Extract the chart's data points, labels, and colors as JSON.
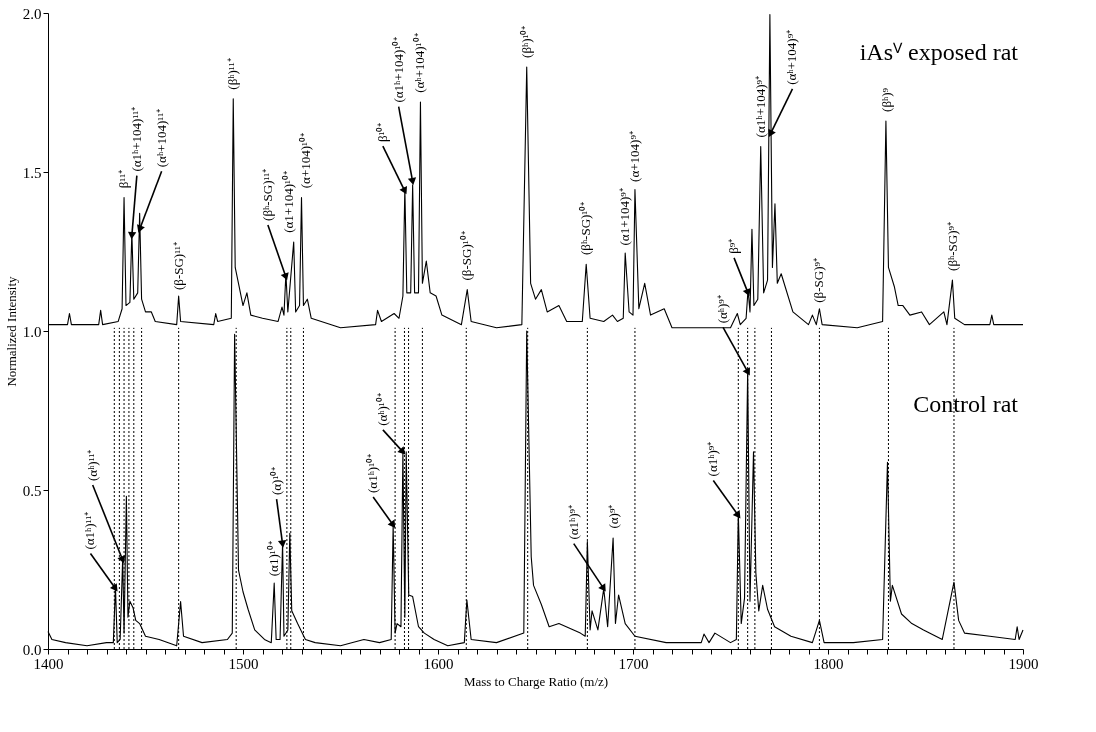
{
  "chart_data": {
    "type": "line",
    "xlabel": "Mass to Charge Ratio (m/z)",
    "ylabel": "Normalized Intensity",
    "xlim": [
      1400,
      1900
    ],
    "ylim": [
      0,
      2
    ],
    "xticks": [
      1400,
      {
        "value": 1410,
        "label": null
      },
      {
        "value": 1420,
        "label": null
      },
      {
        "value": 1430,
        "label": null
      },
      {
        "value": 1440,
        "label": null
      },
      {
        "value": 1450,
        "label": null
      },
      {
        "value": 1460,
        "label": null
      },
      {
        "value": 1470,
        "label": null
      },
      {
        "value": 1480,
        "label": null
      },
      {
        "value": 1490,
        "label": null
      },
      1500,
      {
        "value": 1510,
        "label": null
      },
      {
        "value": 1520,
        "label": null
      },
      {
        "value": 1530,
        "label": null
      },
      {
        "value": 1540,
        "label": null
      },
      {
        "value": 1550,
        "label": null
      },
      {
        "value": 1560,
        "label": null
      },
      {
        "value": 1570,
        "label": null
      },
      {
        "value": 1580,
        "label": null
      },
      {
        "value": 1590,
        "label": null
      },
      1600,
      {
        "value": 1610,
        "label": null
      },
      {
        "value": 1620,
        "label": null
      },
      {
        "value": 1630,
        "label": null
      },
      {
        "value": 1640,
        "label": null
      },
      {
        "value": 1650,
        "label": null
      },
      {
        "value": 1660,
        "label": null
      },
      {
        "value": 1670,
        "label": null
      },
      {
        "value": 1680,
        "label": null
      },
      {
        "value": 1690,
        "label": null
      },
      1700,
      {
        "value": 1710,
        "label": null
      },
      {
        "value": 1720,
        "label": null
      },
      {
        "value": 1730,
        "label": null
      },
      {
        "value": 1740,
        "label": null
      },
      {
        "value": 1750,
        "label": null
      },
      {
        "value": 1760,
        "label": null
      },
      {
        "value": 1770,
        "label": null
      },
      {
        "value": 1780,
        "label": null
      },
      {
        "value": 1790,
        "label": null
      },
      1800,
      {
        "value": 1810,
        "label": null
      },
      {
        "value": 1820,
        "label": null
      },
      {
        "value": 1830,
        "label": null
      },
      {
        "value": 1840,
        "label": null
      },
      {
        "value": 1850,
        "label": null
      },
      {
        "value": 1860,
        "label": null
      },
      {
        "value": 1870,
        "label": null
      },
      {
        "value": 1880,
        "label": null
      },
      {
        "value": 1890,
        "label": null
      },
      1900
    ],
    "yticks": [
      {
        "value": 0,
        "label": "0.0"
      },
      {
        "value": 0.5,
        "label": "0.5"
      },
      {
        "value": 1,
        "label": "1.0"
      },
      {
        "value": 1.5,
        "label": "1.5"
      },
      {
        "value": 2,
        "label": "2.0"
      }
    ],
    "grid": false,
    "marker": "none",
    "line_style": "solid",
    "series": [
      {
        "name": "iAsⱽ exposed rat",
        "color": "#000000",
        "x": [
          1400,
          1410,
          1411,
          1412,
          1426,
          1427,
          1428,
          1436,
          1438,
          1439,
          1440,
          1442,
          1443,
          1444,
          1446,
          1447,
          1448,
          1450,
          1453,
          1455,
          1466,
          1467,
          1468,
          1485,
          1486,
          1487,
          1494,
          1495,
          1496,
          1498,
          1500,
          1502,
          1504,
          1510,
          1518,
          1520,
          1521,
          1522,
          1523,
          1526,
          1527,
          1529,
          1530,
          1531,
          1533,
          1535,
          1550,
          1568,
          1569,
          1571,
          1577.5,
          1580,
          1582,
          1583,
          1584,
          1586,
          1587,
          1588,
          1590,
          1591,
          1592,
          1594,
          1596,
          1599,
          1602,
          1612,
          1615,
          1617,
          1630,
          1643,
          1645.5,
          1647.5,
          1650,
          1653,
          1656,
          1662,
          1666,
          1674,
          1676,
          1678,
          1685,
          1689.5,
          1692,
          1695,
          1696,
          1698,
          1700,
          1701,
          1703,
          1706,
          1709,
          1716,
          1720,
          1739,
          1750,
          1753.5,
          1755,
          1758,
          1759,
          1760,
          1761,
          1762,
          1764,
          1765.5,
          1767,
          1769,
          1770.2,
          1771.5,
          1772.8,
          1774,
          1776,
          1778,
          1782,
          1790,
          1792,
          1794,
          1795.6,
          1797,
          1815,
          1828,
          1829.7,
          1831,
          1834,
          1836,
          1838.4,
          1842,
          1848,
          1852,
          1859.4,
          1861,
          1863.8,
          1865,
          1870,
          1883,
          1884,
          1885,
          1900
        ],
        "values": [
          1.02,
          1.02,
          1.055,
          1.02,
          1.02,
          1.065,
          1.02,
          1.03,
          1.07,
          1.42,
          1.08,
          1.09,
          1.31,
          1.1,
          1.12,
          1.37,
          1.1,
          1.06,
          1.06,
          1.03,
          1.02,
          1.11,
          1.03,
          1.02,
          1.055,
          1.03,
          1.04,
          1.73,
          1.2,
          1.14,
          1.08,
          1.12,
          1.05,
          1.04,
          1.03,
          1.075,
          1.05,
          1.18,
          1.06,
          1.28,
          1.06,
          1.08,
          1.42,
          1.08,
          1.1,
          1.04,
          1.01,
          1.02,
          1.065,
          1.03,
          1.055,
          1.04,
          1.11,
          1.45,
          1.12,
          1.12,
          1.46,
          1.12,
          1.12,
          1.72,
          1.15,
          1.22,
          1.12,
          1.11,
          1.05,
          1.02,
          1.13,
          1.03,
          1.01,
          1.02,
          1.83,
          1.15,
          1.1,
          1.13,
          1.06,
          1.08,
          1.03,
          1.03,
          1.21,
          1.04,
          1.03,
          1.05,
          1.03,
          1.04,
          1.245,
          1.06,
          1.05,
          1.445,
          1.07,
          1.15,
          1.05,
          1.07,
          1.01,
          1.01,
          1.01,
          1.055,
          1.02,
          1.04,
          1.13,
          1.06,
          1.32,
          1.08,
          1.1,
          1.58,
          1.12,
          1.16,
          1.995,
          1.2,
          1.4,
          1.15,
          1.18,
          1.14,
          1.06,
          1.02,
          1.05,
          1.02,
          1.07,
          1.02,
          1.01,
          1.03,
          1.66,
          1.2,
          1.14,
          1.08,
          1.08,
          1.05,
          1.06,
          1.02,
          1.06,
          1.02,
          1.16,
          1.04,
          1.02,
          1.02,
          1.05,
          1.02,
          1.02
        ]
      },
      {
        "name": "Control rat",
        "color": "#000000",
        "x": [
          1400,
          1402,
          1409,
          1420,
          1430,
          1433.5,
          1434.6,
          1435.5,
          1437,
          1438.3,
          1439,
          1440.2,
          1441,
          1442,
          1443.6,
          1445,
          1447,
          1450,
          1457,
          1466,
          1468,
          1469.5,
          1479,
          1492,
          1494.5,
          1495.7,
          1497.7,
          1500,
          1502.6,
          1506,
          1511,
          1514.5,
          1516,
          1517,
          1519,
          1520.3,
          1521,
          1523,
          1524,
          1525,
          1528,
          1532,
          1537,
          1550,
          1562,
          1570,
          1576,
          1577,
          1578,
          1579,
          1581,
          1582,
          1583,
          1583.7,
          1585,
          1587,
          1590,
          1593,
          1598,
          1605,
          1613.5,
          1614.8,
          1617,
          1630,
          1644,
          1645.5,
          1647.8,
          1649,
          1653,
          1657,
          1662,
          1673,
          1675.5,
          1676.6,
          1678,
          1679,
          1682,
          1685,
          1687,
          1689.8,
          1691,
          1692.6,
          1696,
          1701,
          1717,
          1735,
          1736.4,
          1739,
          1742,
          1750,
          1753,
          1754,
          1755.5,
          1757.2,
          1758.8,
          1760,
          1761.8,
          1763,
          1764.5,
          1766.5,
          1769,
          1772.6,
          1781,
          1792,
          1795.6,
          1798,
          1813,
          1828,
          1830.5,
          1832,
          1833,
          1837.7,
          1843,
          1849,
          1858.6,
          1864.6,
          1867,
          1870,
          1883,
          1896,
          1897,
          1898,
          1900
        ],
        "values": [
          0.055,
          0.03,
          0.02,
          0.01,
          0.02,
          0.02,
          0.196,
          0.02,
          0.03,
          0.285,
          0.05,
          0.48,
          0.1,
          0.15,
          0.13,
          0.09,
          0.08,
          0.04,
          0.03,
          0.01,
          0.149,
          0.04,
          0.02,
          0.03,
          0.05,
          0.99,
          0.248,
          0.18,
          0.125,
          0.06,
          0.03,
          0.02,
          0.207,
          0.03,
          0.03,
          0.333,
          0.04,
          0.06,
          0.364,
          0.12,
          0.08,
          0.03,
          0.02,
          0.01,
          0.03,
          0.02,
          0.03,
          0.39,
          0.05,
          0.08,
          0.07,
          0.62,
          0.1,
          0.62,
          0.17,
          0.165,
          0.07,
          0.05,
          0.03,
          0.01,
          0.02,
          0.154,
          0.03,
          0.02,
          0.05,
          1.0,
          0.29,
          0.2,
          0.14,
          0.07,
          0.08,
          0.05,
          0.04,
          0.338,
          0.06,
          0.12,
          0.06,
          0.19,
          0.07,
          0.349,
          0.08,
          0.17,
          0.08,
          0.04,
          0.02,
          0.02,
          0.047,
          0.02,
          0.05,
          0.02,
          0.03,
          0.428,
          0.08,
          0.16,
          0.873,
          0.15,
          0.62,
          0.24,
          0.12,
          0.2,
          0.125,
          0.07,
          0.04,
          0.02,
          0.09,
          0.02,
          0.02,
          0.03,
          0.587,
          0.15,
          0.2,
          0.11,
          0.08,
          0.06,
          0.03,
          0.21,
          0.09,
          0.05,
          0.04,
          0.03,
          0.07,
          0.03,
          0.06
        ]
      }
    ],
    "ref_lines": [
      {
        "axis": "x",
        "value": 1434,
        "color": "#000000",
        "line_style": "dotted"
      },
      {
        "axis": "x",
        "value": 1436.6,
        "color": "#000000",
        "line_style": "dotted"
      },
      {
        "axis": "x",
        "value": 1439,
        "color": "#000000",
        "line_style": "dotted"
      },
      {
        "axis": "x",
        "value": 1441.5,
        "color": "#000000",
        "line_style": "dotted"
      },
      {
        "axis": "x",
        "value": 1444,
        "color": "#000000",
        "line_style": "dotted"
      },
      {
        "axis": "x",
        "value": 1448,
        "color": "#000000",
        "line_style": "dotted"
      },
      {
        "axis": "x",
        "value": 1467,
        "color": "#000000",
        "line_style": "dotted"
      },
      {
        "axis": "x",
        "value": 1496.5,
        "color": "#000000",
        "line_style": "dotted"
      },
      {
        "axis": "x",
        "value": 1522.5,
        "color": "#000000",
        "line_style": "dotted"
      },
      {
        "axis": "x",
        "value": 1524.5,
        "color": "#000000",
        "line_style": "dotted"
      },
      {
        "axis": "x",
        "value": 1531,
        "color": "#000000",
        "line_style": "dotted"
      },
      {
        "axis": "x",
        "value": 1578,
        "color": "#000000",
        "line_style": "dotted"
      },
      {
        "axis": "x",
        "value": 1582.8,
        "color": "#000000",
        "line_style": "dotted"
      },
      {
        "axis": "x",
        "value": 1584.9,
        "color": "#000000",
        "line_style": "dotted"
      },
      {
        "axis": "x",
        "value": 1592,
        "color": "#000000",
        "line_style": "dotted"
      },
      {
        "axis": "x",
        "value": 1614.5,
        "color": "#000000",
        "line_style": "dotted"
      },
      {
        "axis": "x",
        "value": 1646,
        "color": "#000000",
        "line_style": "dotted"
      },
      {
        "axis": "x",
        "value": 1676.6,
        "color": "#000000",
        "line_style": "dotted"
      },
      {
        "axis": "x",
        "value": 1701,
        "color": "#000000",
        "line_style": "dotted"
      },
      {
        "axis": "x",
        "value": 1754,
        "color": "#000000",
        "line_style": "dotted"
      },
      {
        "axis": "x",
        "value": 1758.8,
        "color": "#000000",
        "line_style": "dotted"
      },
      {
        "axis": "x",
        "value": 1762.5,
        "color": "#000000",
        "line_style": "dotted"
      },
      {
        "axis": "x",
        "value": 1771,
        "color": "#000000",
        "line_style": "dotted"
      },
      {
        "axis": "x",
        "value": 1795.6,
        "color": "#000000",
        "line_style": "dotted"
      },
      {
        "axis": "x",
        "value": 1831,
        "color": "#000000",
        "line_style": "dotted"
      },
      {
        "axis": "x",
        "value": 1864.6,
        "color": "#000000",
        "line_style": "dotted"
      }
    ],
    "annotations": [
      {
        "text": "β¹¹⁺",
        "x": 1439,
        "y": 1.43
      },
      {
        "text": "(α1ʰ+104)¹¹⁺",
        "x": 1443,
        "y": 1.3
      },
      {
        "text": "(αʰ+104)¹¹⁺",
        "x": 1447,
        "y": 1.32
      },
      {
        "text": "(β-SG)¹¹⁺",
        "x": 1467,
        "y": 1.11
      },
      {
        "text": "(βʰ)¹¹⁺",
        "x": 1495,
        "y": 1.74
      },
      {
        "text": "(βʰ-SG)¹¹⁺",
        "x": 1522,
        "y": 1.17
      },
      {
        "text": "(α1+104)¹⁰⁺",
        "x": 1526,
        "y": 1.29
      },
      {
        "text": "(α+104)¹⁰⁺",
        "x": 1530,
        "y": 1.43
      },
      {
        "text": "β¹⁰⁺",
        "x": 1583,
        "y": 1.44
      },
      {
        "text": "(α1ʰ+104)¹⁰⁺",
        "x": 1587,
        "y": 1.47
      },
      {
        "text": "(αʰ+104)¹⁰⁺",
        "x": 1591,
        "y": 1.73
      },
      {
        "text": "(β-SG)¹⁰⁺",
        "x": 1615,
        "y": 1.14
      },
      {
        "text": "(βʰ)¹⁰⁺",
        "x": 1645.5,
        "y": 1.84
      },
      {
        "text": "(βʰ-SG)¹⁰⁺",
        "x": 1676,
        "y": 1.22
      },
      {
        "text": "(α1+104)⁹⁺",
        "x": 1696,
        "y": 1.25
      },
      {
        "text": "(α+104)⁹⁺",
        "x": 1701,
        "y": 1.45
      },
      {
        "text": "β⁹⁺",
        "x": 1759,
        "y": 1.12
      },
      {
        "text": "(α1ʰ+104)⁹⁺",
        "x": 1765.5,
        "y": 1.59
      },
      {
        "text": "(αʰ+104)⁹⁺",
        "x": 1770.5,
        "y": 1.62
      },
      {
        "text": "(β-SG)⁹⁺",
        "x": 1795.5,
        "y": 1.07
      },
      {
        "text": "(βʰ)⁹",
        "x": 1830,
        "y": 1.67
      },
      {
        "text": "(βʰ-SG)⁹⁺",
        "x": 1864,
        "y": 1.17
      },
      {
        "text": "(α1ʰ)¹¹⁺",
        "x": 1434.6,
        "y": 0.19
      },
      {
        "text": "(αʰ)¹¹⁺",
        "x": 1438.3,
        "y": 0.28
      },
      {
        "text": "(α1)¹⁰⁺",
        "x": 1516,
        "y": 0.21
      },
      {
        "text": "(α)¹⁰⁺",
        "x": 1520.3,
        "y": 0.33
      },
      {
        "text": "(α1ʰ)¹⁰⁺",
        "x": 1577,
        "y": 0.39
      },
      {
        "text": "(αʰ)¹⁰⁺",
        "x": 1582,
        "y": 0.62
      },
      {
        "text": "(α1ʰ)⁹⁺",
        "x": 1685,
        "y": 0.19
      },
      {
        "text": "(α)⁹⁺",
        "x": 1690,
        "y": 0.36
      },
      {
        "text": "(α1ʰ)⁹⁺",
        "x": 1754,
        "y": 0.42
      },
      {
        "text": "(αʰ)⁹⁺",
        "x": 1759,
        "y": 0.87
      }
    ]
  }
}
